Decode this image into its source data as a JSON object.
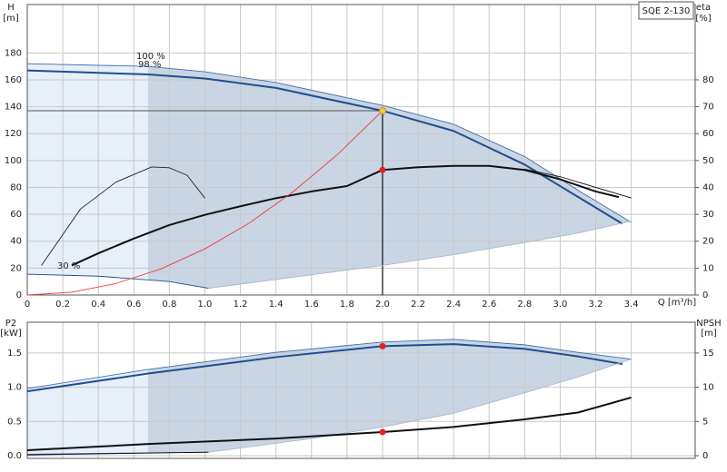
{
  "chart_data": [
    {
      "type": "line",
      "model": "SQE 2-130",
      "y_label": "H",
      "y_unit": "[m]",
      "y2_label": "eta",
      "y2_unit": "[%]",
      "x_label": "Q [m³/h]",
      "xlim": [
        0,
        3.76
      ],
      "ylim": [
        0,
        216
      ],
      "y2lim": [
        0,
        108
      ],
      "xticks": [
        0,
        0.2,
        0.4,
        0.6,
        0.8,
        {
          "value": 1,
          "label": "1.0"
        },
        1.2,
        1.4,
        1.6,
        1.8,
        {
          "value": 2,
          "label": "2.0"
        },
        2.2,
        2.4,
        2.6,
        2.8,
        {
          "value": 3,
          "label": "3.0"
        },
        3.2,
        3.4
      ],
      "yticks": [
        0,
        20,
        40,
        60,
        80,
        100,
        120,
        140,
        160,
        180
      ],
      "y2ticks": [
        0,
        10,
        20,
        30,
        40,
        50,
        60,
        70,
        80
      ],
      "grid": true,
      "dark_region_from": 0.68,
      "series": [
        {
          "name": "100 %",
          "color": "#3f6fae",
          "style": "thin",
          "role": "envelope-top",
          "x": [
            0,
            0.68,
            1.0,
            1.4,
            2.0,
            2.4,
            2.8,
            3.1,
            3.4
          ],
          "values": [
            172,
            170,
            166,
            158,
            141,
            127,
            103,
            78,
            54
          ]
        },
        {
          "name": "98 %",
          "color": "#1d4f91",
          "style": "thick",
          "x": [
            0,
            0.68,
            1.0,
            1.4,
            2.0,
            2.4,
            2.8,
            3.1,
            3.35
          ],
          "values": [
            167,
            164,
            161,
            154,
            137,
            122,
            97,
            73,
            53
          ]
        },
        {
          "name": "30 %",
          "color": "#1d4f91",
          "style": "thin",
          "role": "envelope-left",
          "x": [
            0,
            0.4,
            0.8,
            1.02
          ],
          "values": [
            15.5,
            14,
            10,
            5
          ]
        },
        {
          "color": "#a8b8cc",
          "style": "thin",
          "role": "envelope-bottom",
          "x": [
            1.02,
            1.6,
            2.0,
            2.4,
            2.8,
            3.1,
            3.4
          ],
          "values": [
            5,
            15,
            22,
            30,
            39,
            46,
            55
          ]
        },
        {
          "color": "#111111",
          "style": "thick",
          "axis": "y2",
          "x": [
            0.25,
            0.4,
            0.6,
            0.8,
            1.0,
            1.2,
            1.4,
            1.6,
            1.8,
            2.0,
            2.2,
            2.4,
            2.6,
            2.8,
            3.0,
            3.2,
            3.33
          ],
          "values": [
            11,
            15.5,
            21,
            26,
            29.8,
            33,
            36,
            38.5,
            40.5,
            46.5,
            47.5,
            48,
            48,
            46.5,
            43,
            38.5,
            36.4
          ]
        },
        {
          "color": "#111111",
          "style": "thin",
          "axis": "y2",
          "x": [
            2.8,
            3.0,
            3.2,
            3.4
          ],
          "values": [
            46.8,
            44,
            40,
            36.1
          ]
        },
        {
          "color": "#222222",
          "style": "thin",
          "axis": "y2",
          "x": [
            0.08,
            0.3,
            0.5,
            0.7,
            0.8,
            0.9,
            1.0
          ],
          "values": [
            11,
            32,
            42,
            47.6,
            47.3,
            44.5,
            36
          ]
        },
        {
          "color": "#f03c3c",
          "style": "thin",
          "x": [
            0,
            0.25,
            0.5,
            0.75,
            1.0,
            1.25,
            1.5,
            1.75,
            2.0
          ],
          "values": [
            0,
            2.1,
            8.6,
            19.3,
            34.3,
            53.5,
            77.1,
            104.9,
            137
          ]
        }
      ],
      "markers": [
        {
          "x": 2.0,
          "value": 137,
          "color": "#f5c542",
          "guides": true
        },
        {
          "x": 2.0,
          "value": 46.5,
          "axis": "y2",
          "color": "#e8201c"
        }
      ]
    },
    {
      "type": "line",
      "y_label": "P2",
      "y_unit": "[kW]",
      "y2_label": "NPSH",
      "y2_unit": "[m]",
      "xlim": [
        0,
        3.76
      ],
      "ylim": [
        -0.04,
        1.95
      ],
      "y2lim": [
        -0.4,
        19.5
      ],
      "xgrid": [
        0,
        0.2,
        0.4,
        0.6,
        0.8,
        1.0,
        1.2,
        1.4,
        1.6,
        1.8,
        2.0,
        2.2,
        2.4,
        2.6,
        2.8,
        3.0,
        3.2,
        3.4
      ],
      "yticks": [
        {
          "value": 0,
          "label": "0.0"
        },
        0.5,
        {
          "value": 1,
          "label": "1.0"
        },
        1.5
      ],
      "y2ticks": [
        0,
        5,
        10,
        15
      ],
      "grid": true,
      "dark_region_from": 0.68,
      "series": [
        {
          "color": "#3f6fae",
          "style": "thin",
          "role": "envelope-top",
          "x": [
            0,
            0.68,
            1.4,
            2.0,
            2.4,
            2.8,
            3.1,
            3.4
          ],
          "values": [
            0.98,
            1.26,
            1.51,
            1.66,
            1.7,
            1.62,
            1.51,
            1.41
          ]
        },
        {
          "color": "#1d4f91",
          "style": "thick",
          "x": [
            0,
            0.68,
            1.4,
            2.0,
            2.4,
            2.8,
            3.1,
            3.35
          ],
          "values": [
            0.94,
            1.2,
            1.44,
            1.6,
            1.63,
            1.56,
            1.45,
            1.34
          ]
        },
        {
          "color": "#1d4f91",
          "style": "thin",
          "role": "envelope-left",
          "x": [
            0,
            0.5,
            1.02
          ],
          "values": [
            0.02,
            0.035,
            0.05
          ]
        },
        {
          "color": "#a8b8cc",
          "style": "thin",
          "role": "envelope-bottom",
          "x": [
            1.02,
            1.6,
            2.0,
            2.4,
            2.8,
            3.1,
            3.4
          ],
          "values": [
            0.05,
            0.25,
            0.42,
            0.62,
            0.92,
            1.15,
            1.41
          ]
        },
        {
          "color": "#111111",
          "style": "thick",
          "axis": "y2",
          "x": [
            0,
            0.68,
            1.4,
            2.0,
            2.4,
            2.8,
            3.1,
            3.4
          ],
          "values": [
            0.8,
            1.7,
            2.5,
            3.45,
            4.2,
            5.3,
            6.3,
            8.5
          ]
        },
        {
          "color": "#111111",
          "style": "thin",
          "axis": "y2",
          "x": [
            0,
            0.5,
            1.02
          ],
          "values": [
            0.1,
            0.3,
            0.5
          ]
        }
      ],
      "markers": [
        {
          "x": 2.0,
          "value": 1.6,
          "color": "#e8201c"
        },
        {
          "x": 2.0,
          "value": 3.45,
          "axis": "y2",
          "color": "#e8201c"
        }
      ]
    }
  ]
}
